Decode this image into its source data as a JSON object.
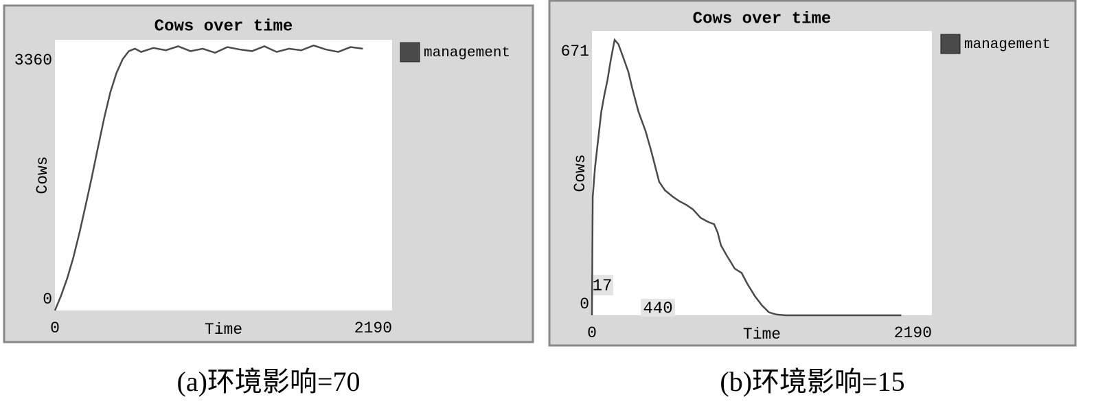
{
  "chart_data": [
    {
      "type": "line",
      "title": "Cows over time",
      "xlabel": "Time",
      "ylabel": "Cows",
      "caption": "(a)环境影响=70",
      "xlim": [
        0,
        2190
      ],
      "xticks": [
        0,
        2190
      ],
      "ylim": [
        0,
        3360
      ],
      "yticks": [
        0,
        3360
      ],
      "grid": false,
      "legend": "upper right",
      "x": [
        0,
        40,
        80,
        120,
        160,
        200,
        240,
        280,
        320,
        360,
        400,
        440,
        480,
        520,
        560,
        640,
        720,
        800,
        880,
        960,
        1040,
        1120,
        1200,
        1280,
        1360,
        1440,
        1520,
        1600,
        1680,
        1760,
        1840,
        1920,
        2000
      ],
      "series": [
        {
          "name": "management",
          "color": "#4a4a4a",
          "values": [
            0,
            185,
            400,
            660,
            970,
            1310,
            1660,
            2030,
            2390,
            2710,
            2950,
            3120,
            3220,
            3250,
            3210,
            3260,
            3230,
            3280,
            3220,
            3250,
            3200,
            3270,
            3240,
            3220,
            3280,
            3210,
            3250,
            3230,
            3290,
            3240,
            3210,
            3270,
            3250
          ]
        }
      ]
    },
    {
      "type": "line",
      "title": "Cows over time",
      "xlabel": "Time",
      "ylabel": "Cows",
      "caption": "(b)环境影响=15",
      "annotations": [
        "17",
        "440"
      ],
      "xlim": [
        0,
        2190
      ],
      "xticks": [
        0,
        2190
      ],
      "ylim": [
        0,
        671
      ],
      "yticks": [
        0,
        671
      ],
      "grid": false,
      "legend": "upper right",
      "x": [
        0,
        5,
        20,
        40,
        60,
        80,
        100,
        120,
        146,
        170,
        200,
        234,
        260,
        300,
        345,
        380,
        433,
        470,
        520,
        560,
        610,
        650,
        700,
        750,
        787,
        810,
        831,
        870,
        920,
        964,
        1000,
        1050,
        1096,
        1140,
        1185,
        1250,
        1400,
        1600,
        1800,
        1993
      ],
      "series": [
        {
          "name": "management",
          "color": "#4a4a4a",
          "values": [
            0,
            280,
            350,
            415,
            480,
            520,
            555,
            600,
            650,
            640,
            610,
            575,
            535,
            480,
            435,
            390,
            315,
            295,
            280,
            270,
            260,
            250,
            230,
            220,
            215,
            195,
            165,
            140,
            110,
            100,
            75,
            45,
            23,
            7,
            2,
            0,
            0,
            0,
            0,
            0
          ]
        }
      ]
    }
  ]
}
